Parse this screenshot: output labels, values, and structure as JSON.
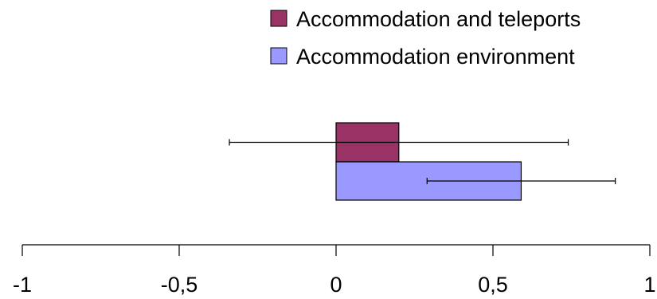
{
  "chart_data": {
    "type": "bar",
    "orientation": "horizontal",
    "title": "",
    "xlabel": "",
    "ylabel": "",
    "xlim": [
      -1,
      1
    ],
    "x_ticks": [
      -1,
      -0.5,
      0,
      0.5,
      1
    ],
    "x_tick_labels": [
      "-1",
      "-0,5",
      "0",
      "0,5",
      "1"
    ],
    "grid": false,
    "legend_position": "top-right",
    "series": [
      {
        "name": "Accommodation and teleports",
        "color": "#993366",
        "value": 0.2,
        "error_low": -0.34,
        "error_high": 0.74
      },
      {
        "name": "Accommodation environment",
        "color": "#9999FF",
        "value": 0.59,
        "error_low": 0.29,
        "error_high": 0.89
      }
    ]
  }
}
